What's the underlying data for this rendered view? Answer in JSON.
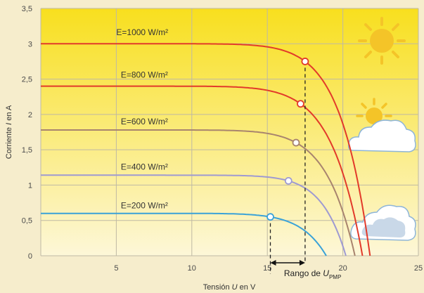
{
  "chart_data": {
    "type": "line",
    "xlabel_prefix": "Tensión ",
    "xlabel_var": "U",
    "xlabel_suffix": " en V",
    "ylabel_prefix": "Corriente ",
    "ylabel_var": "I",
    "ylabel_suffix": " en A",
    "xlim": [
      0,
      25
    ],
    "ylim": [
      0,
      3.5
    ],
    "x_ticks": [
      5,
      10,
      15,
      20,
      25
    ],
    "x_tick_labels": [
      "5",
      "10",
      "15",
      "20",
      "25"
    ],
    "y_ticks": [
      0,
      0.5,
      1,
      1.5,
      2,
      2.5,
      3,
      3.5
    ],
    "y_tick_labels": [
      "0",
      "0,5",
      "1",
      "1,5",
      "2",
      "2,5",
      "3",
      "3,5"
    ],
    "grid": true,
    "series": [
      {
        "name": "E=1000 W/m²",
        "isc": 3.0,
        "voc": 21.8,
        "mpp": [
          17.5,
          2.75
        ],
        "color": "#e23a2a"
      },
      {
        "name": "E=800 W/m²",
        "isc": 2.4,
        "voc": 21.3,
        "mpp": [
          17.2,
          2.15
        ],
        "color": "#e23a2a"
      },
      {
        "name": "E=600 W/m²",
        "isc": 1.78,
        "voc": 20.8,
        "mpp": [
          16.9,
          1.6
        ],
        "color": "#a8846e"
      },
      {
        "name": "E=400 W/m²",
        "isc": 1.14,
        "voc": 20.2,
        "mpp": [
          16.4,
          1.06
        ],
        "color": "#9e9ad2"
      },
      {
        "name": "E=200 W/m²",
        "isc": 0.6,
        "voc": 18.9,
        "mpp": [
          15.2,
          0.55
        ],
        "color": "#3aa2d8"
      }
    ],
    "label_positions": [
      {
        "x": 5.0,
        "y": 3.12
      },
      {
        "x": 5.3,
        "y": 2.52
      },
      {
        "x": 5.3,
        "y": 1.86
      },
      {
        "x": 5.3,
        "y": 1.22
      },
      {
        "x": 5.3,
        "y": 0.67
      }
    ],
    "mpp_range": {
      "from": 15.2,
      "to": 17.5,
      "label_prefix": "Rango de ",
      "label_var": "U",
      "label_sub": "PMP"
    }
  },
  "colors": {
    "background_top": "#f8df1e",
    "background_bottom": "#fdf7d8",
    "grid": "#bfb9a4",
    "dash": "#222222",
    "sun": "#f4c428",
    "cloud": "#ffffff",
    "cloud_edge": "#8eb5d8"
  },
  "icons": [
    "sun-icon",
    "sun-behind-cloud-icon",
    "cloud-icon"
  ]
}
